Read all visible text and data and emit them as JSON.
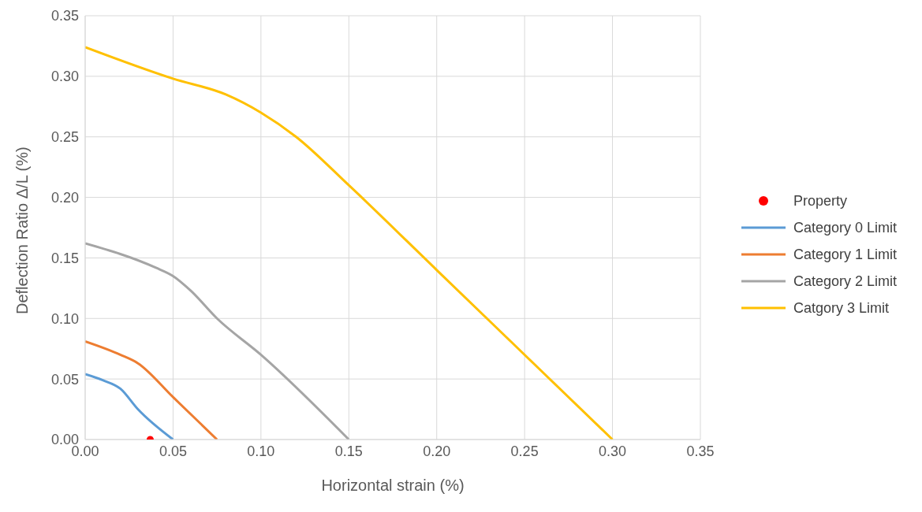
{
  "chart_data": {
    "type": "line",
    "xlabel": "Horizontal strain (%)",
    "ylabel": "Deflection Ratio Δ/L (%)",
    "xlim": [
      0,
      0.35
    ],
    "ylim": [
      0,
      0.35
    ],
    "xticks": [
      {
        "value": 0,
        "label": "0.00"
      },
      {
        "value": 0.05,
        "label": "0.05"
      },
      {
        "value": 0.1,
        "label": "0.10"
      },
      {
        "value": 0.15,
        "label": "0.15"
      },
      {
        "value": 0.2,
        "label": "0.20"
      },
      {
        "value": 0.25,
        "label": "0.25"
      },
      {
        "value": 0.3,
        "label": "0.30"
      },
      {
        "value": 0.35,
        "label": "0.35"
      }
    ],
    "yticks": [
      {
        "value": 0,
        "label": "0.00"
      },
      {
        "value": 0.05,
        "label": "0.05"
      },
      {
        "value": 0.1,
        "label": "0.10"
      },
      {
        "value": 0.15,
        "label": "0.15"
      },
      {
        "value": 0.2,
        "label": "0.20"
      },
      {
        "value": 0.25,
        "label": "0.25"
      },
      {
        "value": 0.3,
        "label": "0.30"
      },
      {
        "value": 0.35,
        "label": "0.35"
      }
    ],
    "grid": true,
    "legend": "right",
    "series": [
      {
        "name": "Property",
        "type": "scatter",
        "marker": "circle",
        "color": "#ff0000",
        "x": [
          0.037
        ],
        "values": [
          0
        ]
      },
      {
        "name": "Category 0 Limit",
        "color": "#5b9bd5",
        "x": [
          0,
          0.01,
          0.02,
          0.03,
          0.05
        ],
        "values": [
          0.054,
          0.049,
          0.042,
          0.025,
          0
        ]
      },
      {
        "name": "Category 1 Limit",
        "color": "#ed7d31",
        "x": [
          0,
          0.02,
          0.03,
          0.05,
          0.075
        ],
        "values": [
          0.081,
          0.07,
          0.063,
          0.035,
          0
        ]
      },
      {
        "name": "Category 2 Limit",
        "color": "#a5a5a5",
        "x": [
          0,
          0.04,
          0.05,
          0.06,
          0.075,
          0.1,
          0.15
        ],
        "values": [
          0.162,
          0.142,
          0.135,
          0.123,
          0.1,
          0.07,
          0
        ]
      },
      {
        "name": "Catgory 3 Limit",
        "color": "#ffc000",
        "x": [
          0,
          0.05,
          0.08,
          0.1,
          0.12,
          0.15,
          0.2,
          0.3
        ],
        "values": [
          0.324,
          0.298,
          0.285,
          0.27,
          0.25,
          0.21,
          0.14,
          0
        ]
      }
    ]
  }
}
